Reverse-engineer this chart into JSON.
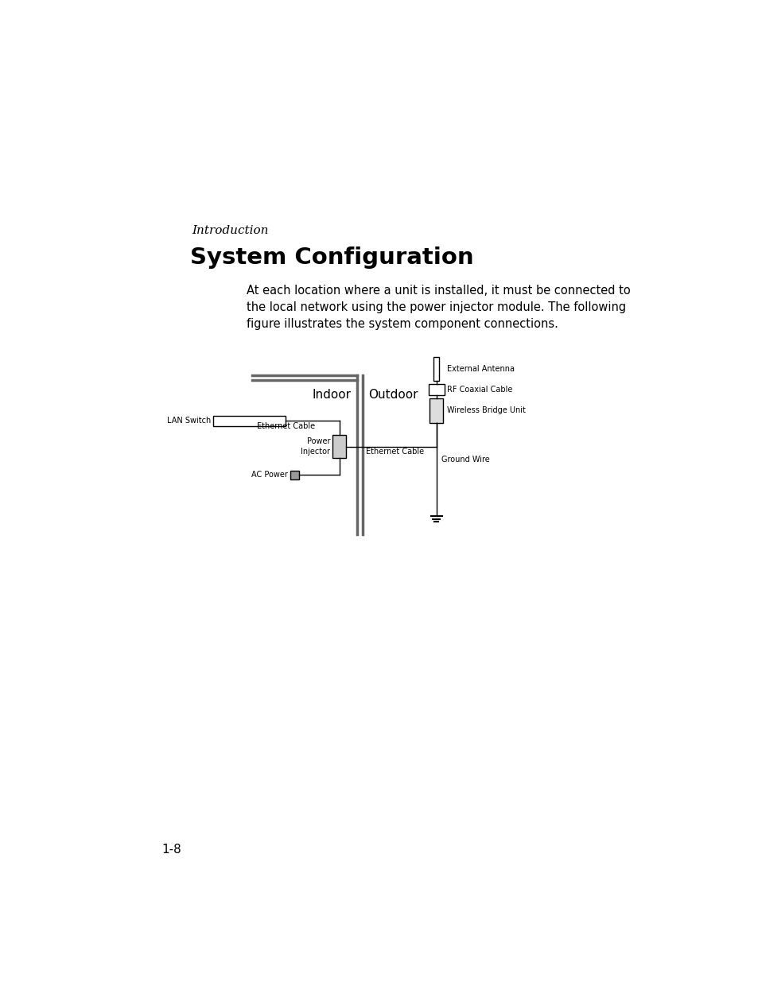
{
  "title": "System Configuration",
  "subtitle": "Introduction",
  "body_text": "At each location where a unit is installed, it must be connected to\nthe local network using the power injector module. The following\nfigure illustrates the system component connections.",
  "page_number": "1-8",
  "bg_color": "#ffffff",
  "text_color": "#000000",
  "diagram": {
    "indoor_label": "Indoor",
    "outdoor_label": "Outdoor",
    "labels": {
      "lan_switch": "LAN Switch",
      "ethernet_cable_left": "Ethernet Cable",
      "ethernet_cable_right": "Ethernet Cable",
      "power_injector": "Power\nInjector",
      "ac_power": "AC Power",
      "ground_wire": "Ground Wire",
      "external_antenna": "External Antenna",
      "rf_coaxial": "RF Coaxial Cable",
      "wireless_bridge": "Wireless Bridge Unit"
    }
  }
}
